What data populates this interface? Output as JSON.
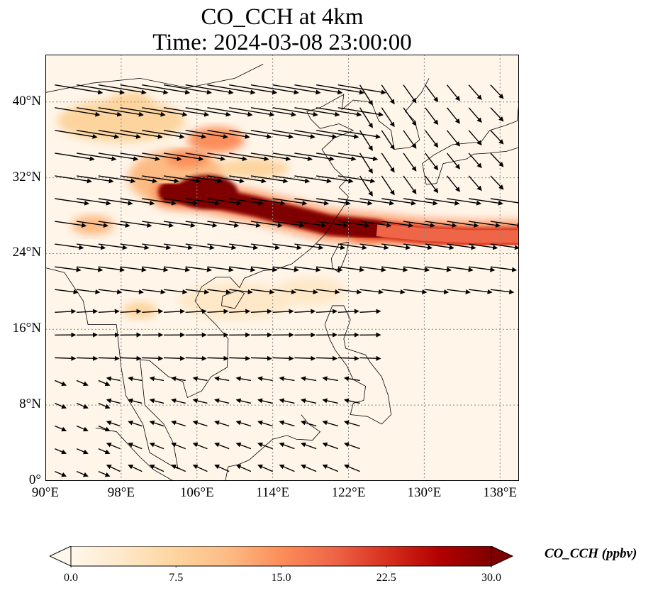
{
  "title": "CO_CCH at 4km",
  "subtitle": "Time: 2024-03-08 23:00:00",
  "map": {
    "projection": "PlateCarree",
    "lon_range": [
      90,
      140
    ],
    "lat_range": [
      0,
      45
    ],
    "gridlines": "dotted grey",
    "lat_ticks": [
      {
        "value": 0,
        "label": "0°"
      },
      {
        "value": 8,
        "label": "8°N"
      },
      {
        "value": 16,
        "label": "16°N"
      },
      {
        "value": 24,
        "label": "24°N"
      },
      {
        "value": 32,
        "label": "32°N"
      },
      {
        "value": 40,
        "label": "40°N"
      }
    ],
    "lon_ticks": [
      {
        "value": 90,
        "label": "90°E"
      },
      {
        "value": 98,
        "label": "98°E"
      },
      {
        "value": 106,
        "label": "106°E"
      },
      {
        "value": 114,
        "label": "114°E"
      },
      {
        "value": 122,
        "label": "122°E"
      },
      {
        "value": 130,
        "label": "130°E"
      },
      {
        "value": 138,
        "label": "138°E"
      }
    ],
    "plume_band": [
      [
        103,
        30.5
      ],
      [
        107,
        30
      ],
      [
        112,
        29
      ],
      [
        116,
        28
      ],
      [
        120,
        27
      ],
      [
        125,
        26.5
      ],
      [
        130,
        26
      ],
      [
        135,
        25.8
      ],
      [
        140,
        25.8
      ]
    ]
  },
  "colorbar": {
    "label": "CO_CCH (ppbv)",
    "colormap": "OrRd",
    "colors": [
      "#fff7ec",
      "#fee8c8",
      "#fdd49e",
      "#fdbb84",
      "#fc8d59",
      "#ef6548",
      "#d7301f",
      "#b30000",
      "#7f0000"
    ],
    "min": 0,
    "max": 30,
    "extend": "both",
    "ticks": [
      "0.0",
      "7.5",
      "15.0",
      "22.5",
      "30.0"
    ]
  },
  "wind_vectors": "black arrows"
}
